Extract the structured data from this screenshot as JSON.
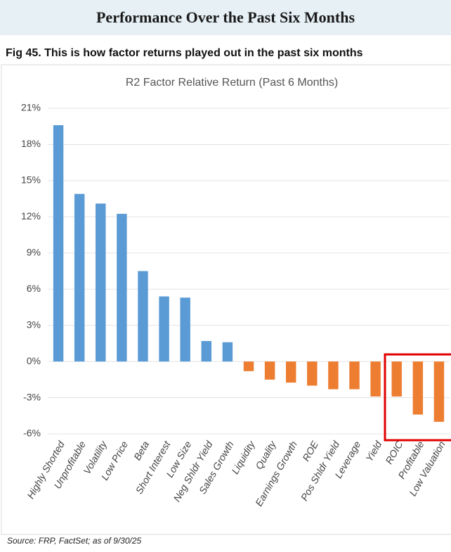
{
  "header": {
    "title": "Performance Over the Past Six Months"
  },
  "figure_caption": "Fig 45.  This is how factor returns played out in the past six months",
  "source": "Source: FRP, FactSet; as of 9/30/25",
  "chart_data": {
    "type": "bar",
    "title": "R2 Factor Relative Return (Past 6 Months)",
    "categories": [
      "Highly Shorted",
      "Unprofitable",
      "Volatility",
      "Low Price",
      "Beta",
      "Short Interest",
      "Low Size",
      "Neg Shldr Yield",
      "Sales Growth",
      "Liquidity",
      "Quality",
      "Earnings Growth",
      "ROE",
      "Pos Shldr Yield",
      "Leverage",
      "Yield",
      "ROIC",
      "Profitable",
      "Low Valuation"
    ],
    "values": [
      19.6,
      13.9,
      13.1,
      12.25,
      7.5,
      5.4,
      5.3,
      1.7,
      1.6,
      -0.8,
      -1.5,
      -1.75,
      -2.0,
      -2.3,
      -2.3,
      -2.9,
      -2.9,
      -4.4,
      -5.0
    ],
    "positive_color": "#5b9bd5",
    "negative_color": "#ed7d31",
    "ylim": [
      -6,
      21
    ],
    "yticks": [
      {
        "value": -6,
        "label": "-6%"
      },
      {
        "value": -3,
        "label": "-3%"
      },
      {
        "value": 0,
        "label": "0%"
      },
      {
        "value": 3,
        "label": "3%"
      },
      {
        "value": 6,
        "label": "6%"
      },
      {
        "value": 9,
        "label": "9%"
      },
      {
        "value": 12,
        "label": "12%"
      },
      {
        "value": 15,
        "label": "15%"
      },
      {
        "value": 18,
        "label": "18%"
      },
      {
        "value": 21,
        "label": "21%"
      }
    ],
    "grid": true
  }
}
